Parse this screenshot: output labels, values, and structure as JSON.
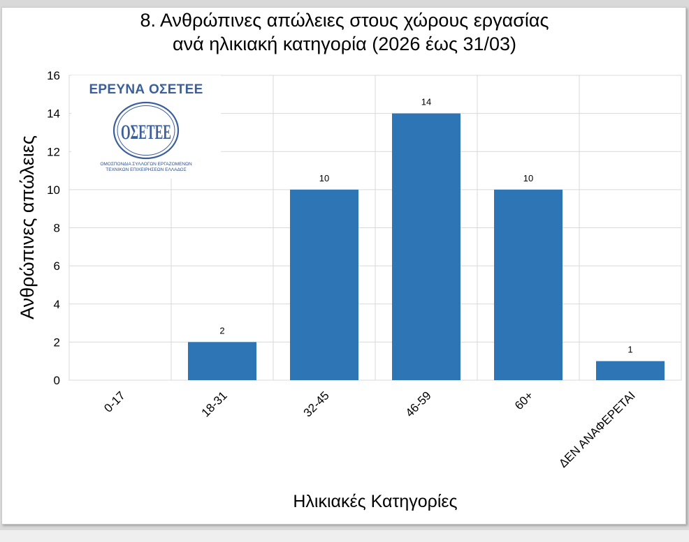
{
  "chart_data": {
    "type": "bar",
    "title": [
      "8. Ανθρώπινες απώλειες στους χώρους εργασίας",
      "ανά ηλικιακή κατηγορία (2026 έως 31/03)"
    ],
    "xlabel": "Ηλικιακές Κατηγορίες",
    "ylabel": "Ανθρώπινες απώλειες",
    "categories": [
      "0-17",
      "18-31",
      "32-45",
      "46-59",
      "60+",
      "ΔΕΝ ΑΝΑΦΕΡΕΤΑΙ"
    ],
    "values": [
      0,
      2,
      10,
      14,
      10,
      1
    ],
    "data_labels": [
      "",
      "2",
      "10",
      "14",
      "10",
      "1"
    ],
    "ylim": [
      0,
      16
    ],
    "yticks": [
      "0",
      "2",
      "4",
      "6",
      "8",
      "10",
      "12",
      "14",
      "16"
    ],
    "grid": true,
    "bar_color": "#2e75b6"
  },
  "logo": {
    "text": "ΕΡΕΥΝΑ ΟΣΕΤΕΕ",
    "emblem": "ΟΣΕΤΕΕ",
    "subtitle_lines": [
      "ΟΜΟΣΠΟΝΔΙΑ ΣΥΛΛΟΓΩΝ ΕΡΓΑΖΟΜΕΝΩΝ",
      "ΤΕΧΝΙΚΩΝ ΕΠΙΧΕΙΡΗΣΕΩΝ ΕΛΛΑΔΟΣ"
    ],
    "color": "#3a5f9a"
  }
}
